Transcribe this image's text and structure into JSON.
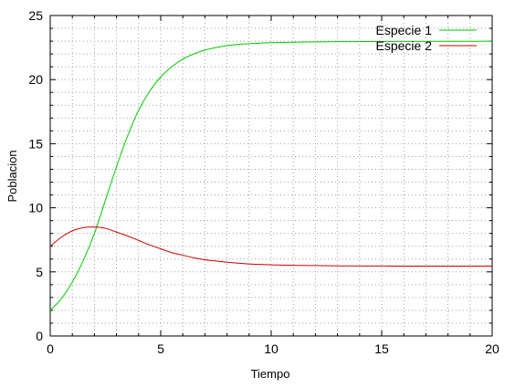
{
  "colors": {
    "background": "#ffffff",
    "grid": "#a0a0a0",
    "axis": "#000000",
    "series_1": "#00cc00",
    "series_2": "#cc0000"
  },
  "chart_data": {
    "type": "line",
    "title": "",
    "xlabel": "Tiempo",
    "ylabel": "Poblacion",
    "xlim": [
      0,
      20
    ],
    "ylim": [
      0,
      25
    ],
    "xticks": [
      "0",
      "5",
      "10",
      "15",
      "20"
    ],
    "yticks": [
      "0",
      "5",
      "10",
      "15",
      "20",
      "25"
    ],
    "grid": true,
    "grid_style": "dotted",
    "legend_position": "top-right",
    "x": [
      0,
      0.5,
      1,
      1.5,
      2,
      2.5,
      3,
      3.5,
      4,
      4.5,
      5,
      5.5,
      6,
      6.5,
      7,
      7.5,
      8,
      8.5,
      9,
      9.5,
      10,
      10.5,
      11,
      11.5,
      12,
      12.5,
      13,
      13.5,
      14,
      14.5,
      15,
      15.5,
      16,
      16.5,
      17,
      17.5,
      18,
      18.5,
      19,
      19.5,
      20
    ],
    "series": [
      {
        "name": "Especie 1",
        "color": "#00cc00",
        "values": [
          2.0,
          2.9,
          4.2,
          5.9,
          8.0,
          10.6,
          13.2,
          15.6,
          17.6,
          19.1,
          20.2,
          21.0,
          21.6,
          22.0,
          22.3,
          22.5,
          22.65,
          22.75,
          22.8,
          22.85,
          22.88,
          22.9,
          22.92,
          22.93,
          22.94,
          22.95,
          22.96,
          22.96,
          22.97,
          22.97,
          22.97,
          22.98,
          22.98,
          22.98,
          22.98,
          22.99,
          22.99,
          22.99,
          22.99,
          22.99,
          23.0
        ]
      },
      {
        "name": "Especie 2",
        "color": "#cc0000",
        "values": [
          7.0,
          7.7,
          8.2,
          8.45,
          8.5,
          8.4,
          8.1,
          7.8,
          7.45,
          7.1,
          6.8,
          6.5,
          6.3,
          6.1,
          5.95,
          5.85,
          5.75,
          5.68,
          5.62,
          5.58,
          5.55,
          5.53,
          5.51,
          5.5,
          5.49,
          5.48,
          5.47,
          5.47,
          5.46,
          5.46,
          5.46,
          5.45,
          5.45,
          5.45,
          5.45,
          5.45,
          5.45,
          5.45,
          5.45,
          5.45,
          5.45
        ]
      }
    ]
  }
}
